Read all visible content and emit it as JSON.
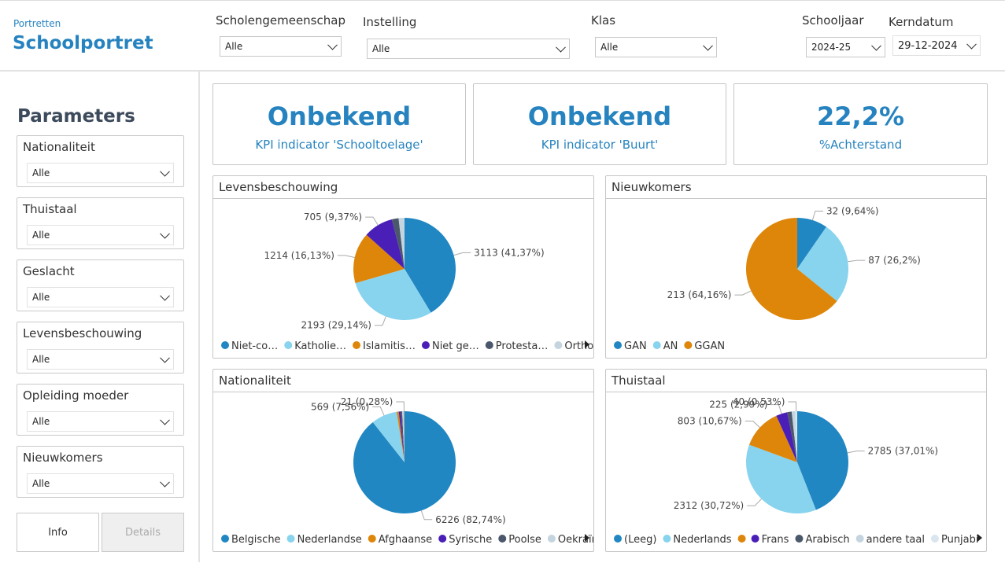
{
  "header": {
    "subtitle": "Portretten",
    "title": "Schoolportret"
  },
  "filters": [
    {
      "label": "Scholengemeenschap",
      "value": "Alle"
    },
    {
      "label": "Instelling",
      "value": "Alle"
    },
    {
      "label": "Klas",
      "value": "Alle"
    },
    {
      "label": "Schooljaar",
      "value": "2024-25"
    },
    {
      "label": "Kerndatum",
      "value": "29-12-2024"
    }
  ],
  "parameters": {
    "title": "Parameters",
    "items": [
      {
        "label": "Nationaliteit",
        "value": "Alle"
      },
      {
        "label": "Thuistaal",
        "value": "Alle"
      },
      {
        "label": "Geslacht",
        "value": "Alle"
      },
      {
        "label": "Levensbeschouwing",
        "value": "Alle"
      },
      {
        "label": "Opleiding moeder",
        "value": "Alle"
      },
      {
        "label": "Nieuwkomers",
        "value": "Alle"
      }
    ]
  },
  "buttons": [
    "Info",
    "Details"
  ],
  "kpis": [
    {
      "value": "Onbekend",
      "label": "KPI indicator 'Schooltoelage'"
    },
    {
      "value": "Onbekend",
      "label": "KPI indicator 'Buurt'"
    },
    {
      "value": "22,2%",
      "label": "%Achterstand"
    }
  ],
  "chart_data": [
    {
      "type": "pie",
      "title": "Levensbeschouwing",
      "categories": [
        "Niet-co…",
        "Katholie…",
        "Islamitis…",
        "Niet ge…",
        "Protesta…",
        "Orthodo…"
      ],
      "values": [
        3113,
        2193,
        1214,
        705,
        160,
        140
      ],
      "value_labels": [
        "3113 (41,37%)",
        "2193 (29,14%)",
        "1214 (16,13%)",
        "705 (9,37%)",
        null,
        null
      ],
      "colors": [
        "#2187c2",
        "#88d3ee",
        "#de860a",
        "#4a1fb8",
        "#4b586c",
        "#c4d5e0"
      ]
    },
    {
      "type": "pie",
      "title": "Nieuwkomers",
      "categories": [
        "GAN",
        "AN",
        "GGAN"
      ],
      "values": [
        32,
        87,
        213
      ],
      "value_labels": [
        "32 (9,64%)",
        "87 (26,2%)",
        "213 (64,16%)"
      ],
      "colors": [
        "#2187c2",
        "#88d3ee",
        "#de860a"
      ]
    },
    {
      "type": "pie",
      "title": "Nationaliteit",
      "categories": [
        "Belgische",
        "Nederlandse",
        "Afghaanse",
        "Syrische",
        "Poolse",
        "Oekraïnse",
        null
      ],
      "values": [
        6226,
        569,
        45,
        40,
        35,
        30,
        21
      ],
      "value_labels": [
        "6226 (82,74%)",
        "569 (7,56%)",
        null,
        null,
        null,
        null,
        "21 (0,28%)"
      ],
      "colors": [
        "#2187c2",
        "#88d3ee",
        "#de860a",
        "#4a1fb8",
        "#4b586c",
        "#c4d5e0",
        "#a9a9a9"
      ]
    },
    {
      "type": "pie",
      "title": "Thuistaal",
      "categories": [
        "(Leeg)",
        "Nederlands",
        null,
        "Frans",
        "Arabisch",
        "andere taal",
        "Punjabi"
      ],
      "values": [
        2785,
        2312,
        803,
        225,
        90,
        70,
        40
      ],
      "value_labels": [
        "2785 (37,01%)",
        "2312 (30,72%)",
        "803 (10,67%)",
        "225 (2,99%)",
        null,
        null,
        "40 (0,53%)"
      ],
      "colors": [
        "#2187c2",
        "#88d3ee",
        "#de860a",
        "#4a1fb8",
        "#4b586c",
        "#c4d5e0",
        "#d9e5ef"
      ]
    }
  ]
}
